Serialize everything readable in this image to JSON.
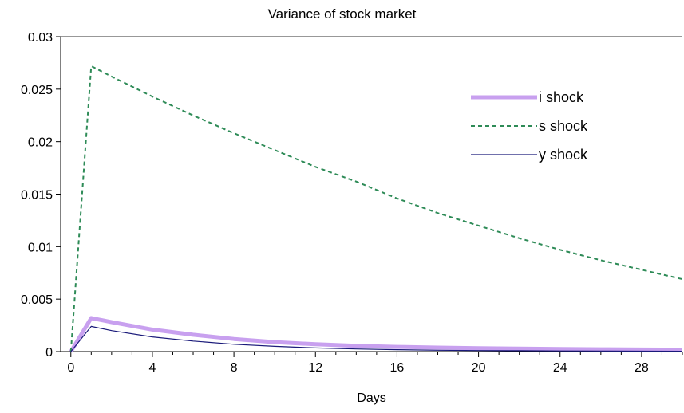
{
  "chart_data": {
    "type": "line",
    "title": "Variance of stock market",
    "xlabel": "Days",
    "ylabel": "",
    "xlim": [
      -0.5,
      30
    ],
    "ylim": [
      0,
      0.03
    ],
    "x_ticks": [
      0,
      4,
      8,
      12,
      16,
      20,
      24,
      28
    ],
    "x_minor_step": 1,
    "y_ticks": [
      0,
      0.005,
      0.01,
      0.015,
      0.02,
      0.025,
      0.03
    ],
    "y_tick_labels": [
      "0",
      "0.005",
      "0.01",
      "0.015",
      "0.02",
      "0.025",
      "0.03"
    ],
    "grid": false,
    "legend": "top-right",
    "series": [
      {
        "name": "i shock",
        "color": "#c8a0ef",
        "style": "solid-thick",
        "x": [
          0,
          1,
          2,
          4,
          6,
          8,
          10,
          12,
          14,
          16,
          18,
          20,
          22,
          24,
          26,
          28,
          30
        ],
        "values": [
          0,
          0.0032,
          0.0028,
          0.0021,
          0.0016,
          0.0012,
          0.0009,
          0.0007,
          0.00055,
          0.00045,
          0.00038,
          0.00032,
          0.00028,
          0.00025,
          0.00022,
          0.0002,
          0.00018
        ]
      },
      {
        "name": "s shock",
        "color": "#2e8b57",
        "style": "dashed",
        "x": [
          0,
          1,
          2,
          4,
          6,
          8,
          10,
          12,
          14,
          16,
          18,
          20,
          22,
          24,
          26,
          28,
          30
        ],
        "values": [
          0,
          0.0272,
          0.0262,
          0.0243,
          0.0225,
          0.0208,
          0.0192,
          0.0176,
          0.0162,
          0.0146,
          0.0132,
          0.012,
          0.0108,
          0.0097,
          0.0087,
          0.0078,
          0.0069
        ]
      },
      {
        "name": "y shock",
        "color": "#1a1a7a",
        "style": "solid-thin",
        "x": [
          0,
          1,
          2,
          4,
          6,
          8,
          10,
          12,
          14,
          16,
          18,
          20,
          22,
          24,
          26,
          28,
          30
        ],
        "values": [
          0,
          0.0024,
          0.002,
          0.0014,
          0.001,
          0.0007,
          0.0005,
          0.00035,
          0.00025,
          0.00018,
          0.00013,
          0.0001,
          8e-05,
          6e-05,
          5e-05,
          4e-05,
          3e-05
        ]
      }
    ]
  }
}
